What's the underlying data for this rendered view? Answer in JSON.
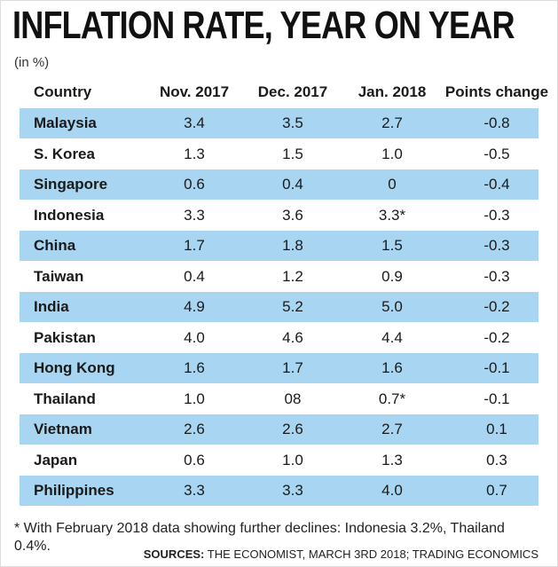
{
  "header": {
    "title": "INFLATION RATE, YEAR ON YEAR",
    "unit": "(in %)"
  },
  "table": {
    "columns": [
      "Country",
      "Nov. 2017",
      "Dec. 2017",
      "Jan. 2018",
      "Points change"
    ],
    "rows": [
      [
        "Malaysia",
        "3.4",
        "3.5",
        "2.7",
        "-0.8"
      ],
      [
        "S. Korea",
        "1.3",
        "1.5",
        "1.0",
        "-0.5"
      ],
      [
        "Singapore",
        "0.6",
        "0.4",
        "0",
        "-0.4"
      ],
      [
        "Indonesia",
        "3.3",
        "3.6",
        "3.3*",
        "-0.3"
      ],
      [
        "China",
        "1.7",
        "1.8",
        "1.5",
        "-0.3"
      ],
      [
        "Taiwan",
        "0.4",
        "1.2",
        "0.9",
        "-0.3"
      ],
      [
        "India",
        "4.9",
        "5.2",
        "5.0",
        "-0.2"
      ],
      [
        "Pakistan",
        "4.0",
        "4.6",
        "4.4",
        "-0.2"
      ],
      [
        "Hong Kong",
        "1.6",
        "1.7",
        "1.6",
        "-0.1"
      ],
      [
        "Thailand",
        "1.0",
        "08",
        "0.7*",
        "-0.1"
      ],
      [
        "Vietnam",
        "2.6",
        "2.6",
        "2.7",
        "0.1"
      ],
      [
        "Japan",
        "0.6",
        "1.0",
        "1.3",
        "0.3"
      ],
      [
        "Philippines",
        "3.3",
        "3.3",
        "4.0",
        "0.7"
      ]
    ]
  },
  "footnote": "* With February 2018 data showing further declines: Indonesia 3.2%, Thailand 0.4%.",
  "sources_label": "SOURCES:",
  "sources": "THE ECONOMIST, MARCH 3RD 2018; TRADING ECONOMICS"
}
